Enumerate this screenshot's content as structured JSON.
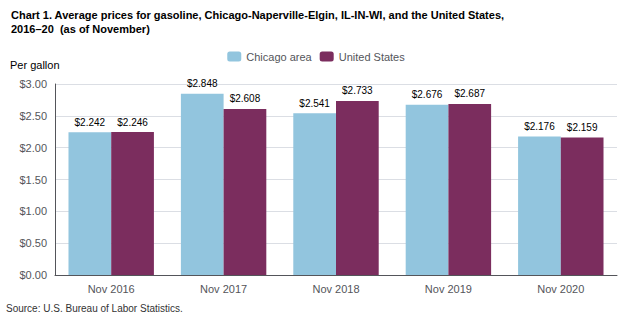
{
  "chart_data": {
    "type": "bar",
    "title": "Chart 1. Average prices for gasoline, Chicago-Naperville-Elgin, IL-IN-WI, and the United States,",
    "subtitle": "2016–20  (as of November)",
    "ylabel": "Per gallon",
    "categories": [
      "Nov 2016",
      "Nov 2017",
      "Nov 2018",
      "Nov 2019",
      "Nov 2020"
    ],
    "series": [
      {
        "name": "Chicago area",
        "color": "#92C5DE",
        "values": [
          2.242,
          2.848,
          2.541,
          2.676,
          2.176
        ],
        "value_labels": [
          "$2.242",
          "$2.848",
          "$2.541",
          "$2.676",
          "$2.176"
        ]
      },
      {
        "name": "United States",
        "color": "#7B2D5E",
        "values": [
          2.246,
          2.608,
          2.733,
          2.687,
          2.159
        ],
        "value_labels": [
          "$2.246",
          "$2.608",
          "$2.733",
          "$2.687",
          "$2.159"
        ]
      }
    ],
    "ylim": [
      0.0,
      3.0
    ],
    "yticks": [
      {
        "value": 0.0,
        "label": "$0.00"
      },
      {
        "value": 0.5,
        "label": "$0.50"
      },
      {
        "value": 1.0,
        "label": "$1.00"
      },
      {
        "value": 1.5,
        "label": "$1.50"
      },
      {
        "value": 2.0,
        "label": "$2.00"
      },
      {
        "value": 2.5,
        "label": "$2.50"
      },
      {
        "value": 3.0,
        "label": "$3.00"
      }
    ],
    "grid": true,
    "legend": "top",
    "data_labels": true,
    "annotations": [
      "Source: U.S. Bureau of Labor Statistics."
    ]
  }
}
